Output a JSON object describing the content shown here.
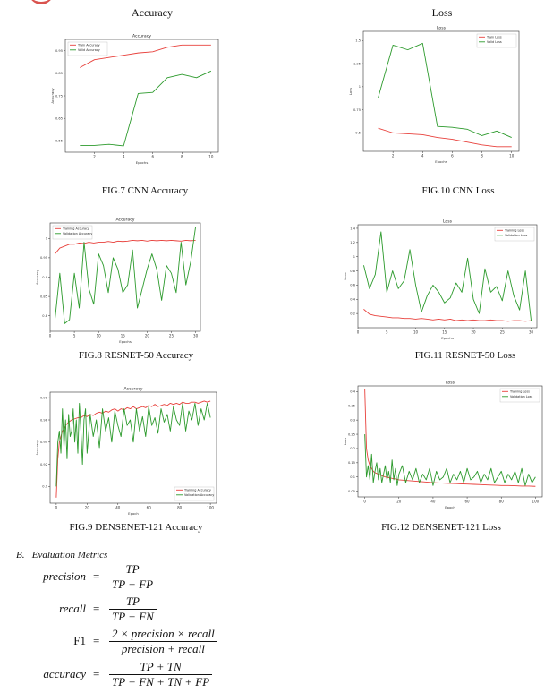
{
  "columns": {
    "left_title": "Accuracy",
    "right_title": "Loss"
  },
  "captions": {
    "fig7": "FIG.7 CNN Accuracy",
    "fig10": "FIG.10 CNN Loss",
    "fig8": "FIG.8 RESNET-50 Accuracy",
    "fig11": "FIG.11 RESNET-50 Loss",
    "fig9": "FIG.9 DENSENET-121 Accuracy",
    "fig12": "FIG.12 DENSENET-121 Loss"
  },
  "section": {
    "title": "B.   Evaluation Metrics"
  },
  "equations": [
    {
      "lhs": "precision",
      "num": "TP",
      "den": "TP + FP"
    },
    {
      "lhs": "recall",
      "num": "TP",
      "den": "TP + FN"
    },
    {
      "lhs": "F1",
      "num": "2 × precision × recall",
      "den": "precision + recall"
    },
    {
      "lhs": "accuracy",
      "num": "TP + TN",
      "den": "TP + FN + TN + FP"
    }
  ],
  "eq_sign": "=",
  "colors": {
    "train": "#e8413c",
    "val": "#2c9a2c"
  },
  "chart_data": [
    {
      "id": "cnn_acc",
      "type": "line",
      "title": "Accuracy",
      "xlabel": "Epochs",
      "ylabel": "Accuracy",
      "xlim": [
        0,
        10.5
      ],
      "ylim": [
        0.5,
        1.0
      ],
      "xticks": [
        2,
        4,
        6,
        8,
        10
      ],
      "yticks": [
        0.55,
        0.65,
        0.75,
        0.85,
        0.95
      ],
      "legend": "top-left",
      "series": [
        {
          "name": "Train Accuracy",
          "color": "train",
          "x": [
            1,
            2,
            3,
            4,
            5,
            6,
            7,
            8,
            9,
            10
          ],
          "y": [
            0.875,
            0.91,
            0.92,
            0.93,
            0.94,
            0.945,
            0.965,
            0.975,
            0.975,
            0.975
          ]
        },
        {
          "name": "Valid Accuracy",
          "color": "val",
          "x": [
            1,
            2,
            3,
            4,
            5,
            6,
            7,
            8,
            9,
            10
          ],
          "y": [
            0.53,
            0.53,
            0.535,
            0.528,
            0.76,
            0.765,
            0.83,
            0.845,
            0.83,
            0.86
          ]
        }
      ]
    },
    {
      "id": "cnn_loss",
      "type": "line",
      "title": "Loss",
      "xlabel": "Epochs",
      "ylabel": "Loss",
      "xlim": [
        0,
        10.5
      ],
      "ylim": [
        0.3,
        1.6
      ],
      "xticks": [
        2,
        4,
        6,
        8,
        10
      ],
      "yticks": [
        0.5,
        0.75,
        1.0,
        1.25,
        1.5
      ],
      "legend": "top-right",
      "series": [
        {
          "name": "Train Loss",
          "color": "train",
          "x": [
            1,
            2,
            3,
            4,
            5,
            6,
            7,
            8,
            9,
            10
          ],
          "y": [
            0.55,
            0.5,
            0.49,
            0.48,
            0.45,
            0.43,
            0.4,
            0.37,
            0.35,
            0.35
          ]
        },
        {
          "name": "Valid Loss",
          "color": "val",
          "x": [
            1,
            2,
            3,
            4,
            5,
            6,
            7,
            8,
            9,
            10
          ],
          "y": [
            0.88,
            1.45,
            1.4,
            1.47,
            0.57,
            0.56,
            0.54,
            0.47,
            0.52,
            0.45
          ]
        }
      ]
    },
    {
      "id": "resnet_acc",
      "type": "line",
      "title": "Accuracy",
      "xlabel": "Epochs",
      "ylabel": "Accuracy",
      "xlim": [
        0,
        31
      ],
      "ylim": [
        0.76,
        1.04
      ],
      "xticks": [
        0,
        5,
        10,
        15,
        20,
        25,
        30
      ],
      "yticks": [
        0.8,
        0.85,
        0.9,
        0.95,
        1.0
      ],
      "legend": "top-left",
      "series": [
        {
          "name": "Training Accuracy",
          "color": "train",
          "x": [
            1,
            2,
            3,
            4,
            5,
            6,
            7,
            8,
            9,
            10,
            11,
            12,
            13,
            14,
            15,
            16,
            17,
            18,
            19,
            20,
            21,
            22,
            23,
            24,
            25,
            26,
            27,
            28,
            29,
            30
          ],
          "y": [
            0.96,
            0.975,
            0.98,
            0.985,
            0.985,
            0.988,
            0.987,
            0.99,
            0.988,
            0.99,
            0.99,
            0.992,
            0.99,
            0.993,
            0.992,
            0.993,
            0.995,
            0.994,
            0.995,
            0.993,
            0.995,
            0.994,
            0.995,
            0.994,
            0.995,
            0.994,
            0.993,
            0.995,
            0.994,
            0.995
          ]
        },
        {
          "name": "Validation Accuracy",
          "color": "val",
          "x": [
            1,
            2,
            3,
            4,
            5,
            6,
            7,
            8,
            9,
            10,
            11,
            12,
            13,
            14,
            15,
            16,
            17,
            18,
            19,
            20,
            21,
            22,
            23,
            24,
            25,
            26,
            27,
            28,
            29,
            30
          ],
          "y": [
            0.79,
            0.91,
            0.78,
            0.79,
            0.91,
            0.82,
            0.99,
            0.87,
            0.83,
            0.96,
            0.93,
            0.86,
            0.95,
            0.92,
            0.86,
            0.88,
            0.97,
            0.82,
            0.87,
            0.92,
            0.96,
            0.92,
            0.84,
            0.93,
            0.91,
            0.86,
            0.99,
            0.88,
            0.94,
            1.03
          ]
        }
      ]
    },
    {
      "id": "resnet_loss",
      "type": "line",
      "title": "Loss",
      "xlabel": "Epochs",
      "ylabel": "Loss",
      "xlim": [
        0,
        31
      ],
      "ylim": [
        0.0,
        1.45
      ],
      "xticks": [
        0,
        5,
        10,
        15,
        20,
        25,
        30
      ],
      "yticks": [
        0.2,
        0.4,
        0.6,
        0.8,
        1.0,
        1.2,
        1.4
      ],
      "legend": "top-right",
      "series": [
        {
          "name": "Training Loss",
          "color": "train",
          "x": [
            1,
            2,
            3,
            4,
            5,
            6,
            7,
            8,
            9,
            10,
            11,
            12,
            13,
            14,
            15,
            16,
            17,
            18,
            19,
            20,
            21,
            22,
            23,
            24,
            25,
            26,
            27,
            28,
            29,
            30
          ],
          "y": [
            0.26,
            0.19,
            0.17,
            0.16,
            0.15,
            0.14,
            0.14,
            0.13,
            0.13,
            0.12,
            0.13,
            0.12,
            0.11,
            0.12,
            0.11,
            0.12,
            0.1,
            0.11,
            0.1,
            0.11,
            0.1,
            0.1,
            0.11,
            0.1,
            0.1,
            0.09,
            0.1,
            0.1,
            0.09,
            0.1
          ]
        },
        {
          "name": "Validation Loss",
          "color": "val",
          "x": [
            1,
            2,
            3,
            4,
            5,
            6,
            7,
            8,
            9,
            10,
            11,
            12,
            13,
            14,
            15,
            16,
            17,
            18,
            19,
            20,
            21,
            22,
            23,
            24,
            25,
            26,
            27,
            28,
            29,
            30
          ],
          "y": [
            0.88,
            0.55,
            0.75,
            1.35,
            0.5,
            0.8,
            0.55,
            0.66,
            1.1,
            0.6,
            0.22,
            0.45,
            0.6,
            0.5,
            0.35,
            0.42,
            0.63,
            0.5,
            0.98,
            0.4,
            0.2,
            0.83,
            0.5,
            0.58,
            0.38,
            0.8,
            0.45,
            0.25,
            0.8,
            0.1
          ]
        }
      ]
    },
    {
      "id": "densenet_acc",
      "type": "line",
      "title": "Accuracy",
      "xlabel": "Epoch",
      "ylabel": "Accuracy",
      "xlim": [
        -4,
        104
      ],
      "ylim": [
        0.885,
        0.985
      ],
      "xticks": [
        0,
        20,
        40,
        60,
        80,
        100
      ],
      "yticks": [
        0.9,
        0.92,
        0.94,
        0.96,
        0.98
      ],
      "legend": "bottom-right",
      "series": [
        {
          "name": "Training Accuracy",
          "color": "train",
          "x": [
            0,
            1,
            2,
            3,
            4,
            5,
            6,
            8,
            10,
            12,
            14,
            16,
            18,
            20,
            22,
            24,
            26,
            28,
            30,
            32,
            34,
            36,
            38,
            40,
            42,
            44,
            46,
            48,
            50,
            52,
            54,
            56,
            58,
            60,
            62,
            64,
            66,
            68,
            70,
            72,
            74,
            76,
            78,
            80,
            82,
            84,
            86,
            88,
            90,
            92,
            94,
            96,
            98,
            100
          ],
          "y": [
            0.89,
            0.925,
            0.94,
            0.945,
            0.95,
            0.952,
            0.955,
            0.958,
            0.96,
            0.961,
            0.962,
            0.962,
            0.964,
            0.963,
            0.965,
            0.964,
            0.966,
            0.967,
            0.966,
            0.968,
            0.967,
            0.969,
            0.97,
            0.968,
            0.97,
            0.969,
            0.971,
            0.97,
            0.972,
            0.97,
            0.971,
            0.972,
            0.971,
            0.973,
            0.972,
            0.974,
            0.972,
            0.973,
            0.974,
            0.973,
            0.975,
            0.974,
            0.975,
            0.974,
            0.976,
            0.975,
            0.975,
            0.976,
            0.976,
            0.975,
            0.976,
            0.977,
            0.976,
            0.977
          ]
        },
        {
          "name": "Validation Accuracy",
          "color": "val",
          "x": [
            0,
            1,
            2,
            3,
            4,
            5,
            6,
            7,
            8,
            9,
            10,
            11,
            12,
            13,
            14,
            15,
            16,
            17,
            18,
            19,
            20,
            22,
            24,
            26,
            28,
            30,
            32,
            34,
            36,
            38,
            40,
            42,
            44,
            46,
            48,
            50,
            52,
            54,
            56,
            58,
            60,
            62,
            64,
            66,
            68,
            70,
            72,
            74,
            76,
            78,
            80,
            82,
            84,
            86,
            88,
            90,
            92,
            94,
            96,
            98,
            100
          ],
          "y": [
            0.9,
            0.94,
            0.95,
            0.93,
            0.97,
            0.935,
            0.96,
            0.925,
            0.965,
            0.945,
            0.95,
            0.97,
            0.94,
            0.96,
            0.93,
            0.975,
            0.95,
            0.92,
            0.96,
            0.97,
            0.93,
            0.965,
            0.945,
            0.96,
            0.935,
            0.97,
            0.95,
            0.962,
            0.94,
            0.968,
            0.955,
            0.945,
            0.97,
            0.955,
            0.96,
            0.94,
            0.97,
            0.95,
            0.963,
            0.945,
            0.972,
            0.955,
            0.962,
            0.948,
            0.97,
            0.958,
            0.965,
            0.95,
            0.972,
            0.96,
            0.955,
            0.975,
            0.95,
            0.968,
            0.96,
            0.975,
            0.955,
            0.97,
            0.96,
            0.975,
            0.962
          ]
        }
      ]
    },
    {
      "id": "densenet_loss",
      "type": "line",
      "title": "Loss",
      "xlabel": "Epoch",
      "ylabel": "Loss",
      "xlim": [
        -4,
        104
      ],
      "ylim": [
        0.03,
        0.42
      ],
      "xticks": [
        0,
        20,
        40,
        60,
        80,
        100
      ],
      "yticks": [
        0.05,
        0.1,
        0.15,
        0.2,
        0.25,
        0.3,
        0.35,
        0.4
      ],
      "legend": "top-right",
      "series": [
        {
          "name": "Training Loss",
          "color": "train",
          "x": [
            0,
            1,
            2,
            3,
            4,
            5,
            6,
            8,
            10,
            12,
            14,
            16,
            18,
            20,
            24,
            28,
            32,
            36,
            40,
            44,
            48,
            52,
            56,
            60,
            64,
            68,
            72,
            76,
            80,
            84,
            88,
            92,
            96,
            100
          ],
          "y": [
            0.41,
            0.2,
            0.16,
            0.14,
            0.13,
            0.12,
            0.115,
            0.11,
            0.105,
            0.1,
            0.098,
            0.095,
            0.093,
            0.09,
            0.088,
            0.086,
            0.084,
            0.082,
            0.08,
            0.079,
            0.078,
            0.077,
            0.076,
            0.075,
            0.074,
            0.073,
            0.072,
            0.071,
            0.07,
            0.07,
            0.069,
            0.068,
            0.068,
            0.067
          ]
        },
        {
          "name": "Validation Loss",
          "color": "val",
          "x": [
            0,
            1,
            2,
            3,
            4,
            5,
            6,
            7,
            8,
            9,
            10,
            11,
            12,
            13,
            14,
            15,
            16,
            17,
            18,
            19,
            20,
            22,
            24,
            26,
            28,
            30,
            32,
            34,
            36,
            38,
            40,
            42,
            44,
            46,
            48,
            50,
            52,
            54,
            56,
            58,
            60,
            62,
            64,
            66,
            68,
            70,
            72,
            74,
            76,
            78,
            80,
            82,
            84,
            86,
            88,
            90,
            92,
            94,
            96,
            98,
            100
          ],
          "y": [
            0.25,
            0.1,
            0.14,
            0.09,
            0.18,
            0.08,
            0.12,
            0.15,
            0.09,
            0.13,
            0.08,
            0.11,
            0.14,
            0.09,
            0.12,
            0.08,
            0.16,
            0.09,
            0.13,
            0.07,
            0.11,
            0.14,
            0.08,
            0.12,
            0.09,
            0.13,
            0.08,
            0.11,
            0.09,
            0.13,
            0.07,
            0.12,
            0.09,
            0.1,
            0.13,
            0.08,
            0.11,
            0.09,
            0.12,
            0.08,
            0.13,
            0.09,
            0.1,
            0.12,
            0.08,
            0.11,
            0.09,
            0.13,
            0.08,
            0.1,
            0.12,
            0.08,
            0.11,
            0.09,
            0.12,
            0.08,
            0.13,
            0.07,
            0.11,
            0.08,
            0.1
          ]
        }
      ]
    }
  ]
}
